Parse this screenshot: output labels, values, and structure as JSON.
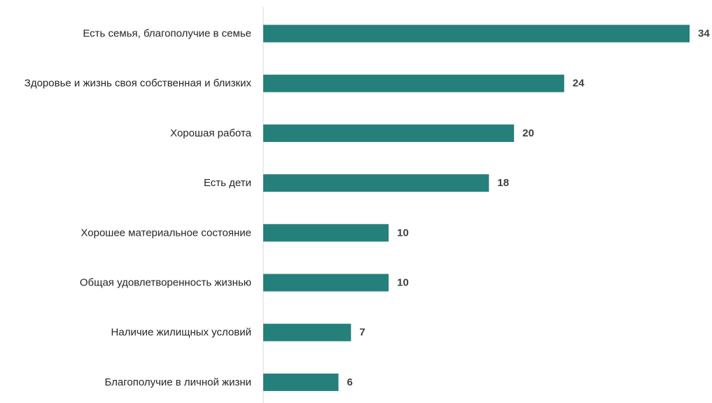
{
  "colors": {
    "bar": "#25807B",
    "axis": "#d9d9d9"
  },
  "chart_data": {
    "type": "bar",
    "orientation": "horizontal",
    "categories": [
      "Есть семья, благополучие в семье",
      "Здоровье и жизнь своя собственная и близких",
      "Хорошая работа",
      "Есть дети",
      "Хорошее материальное состояние",
      "Общая удовлетворенность жизнью",
      "Наличие жилищных условий",
      "Благополучие в личной жизни"
    ],
    "values": [
      34,
      24,
      20,
      18,
      10,
      10,
      7,
      6
    ],
    "data_labels": [
      "34",
      "24",
      "20",
      "18",
      "10",
      "10",
      "7",
      "6"
    ],
    "xlim": [
      0,
      34
    ],
    "grid": false,
    "legend": "none"
  }
}
